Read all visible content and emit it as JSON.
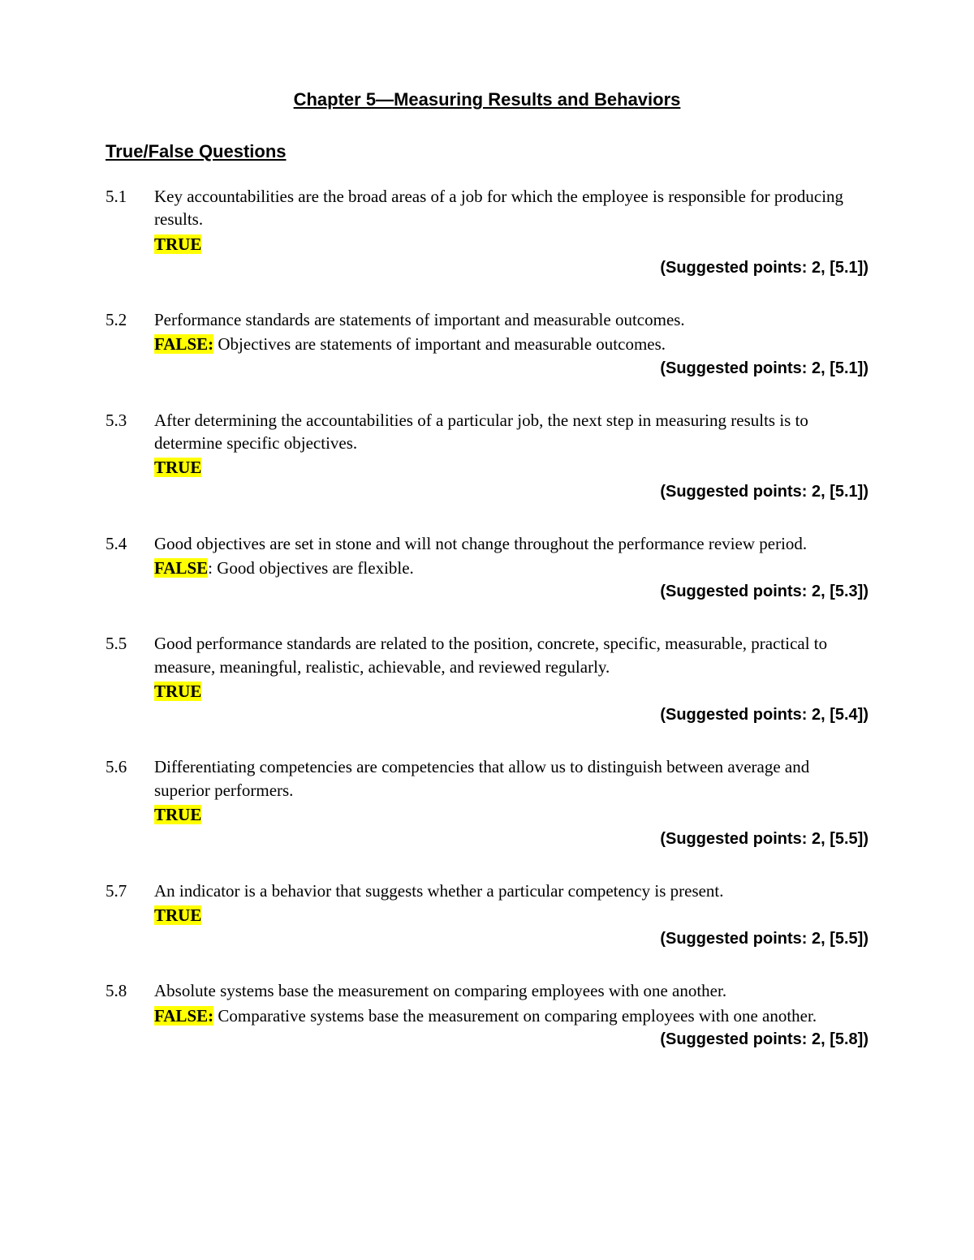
{
  "chapter_title": "Chapter 5—Measuring Results and Behaviors",
  "section_title": "True/False Questions",
  "highlight_color": "#ffff00",
  "text_color": "#000000",
  "background_color": "#ffffff",
  "title_fontsize": 22,
  "body_fontsize": 21,
  "points_fontsize": 20,
  "questions": [
    {
      "number": "5.1",
      "text": "Key accountabilities are the broad areas of a job for which the employee is responsible for producing results.",
      "answer": "TRUE",
      "answer_suffix": "",
      "explanation": "",
      "points": "(Suggested points: 2, [5.1])"
    },
    {
      "number": "5.2",
      "text": "Performance standards are statements of important and measurable outcomes.",
      "answer": "FALSE:",
      "answer_suffix": "",
      "explanation": " Objectives are statements of important and measurable outcomes.",
      "points": "(Suggested points: 2, [5.1])"
    },
    {
      "number": "5.3",
      "text": "After determining the accountabilities of a particular job, the next step in measuring results is to determine specific objectives.",
      "answer": "TRUE",
      "answer_suffix": "",
      "explanation": "",
      "points": "(Suggested points: 2, [5.1])"
    },
    {
      "number": "5.4",
      "text": "Good objectives are set in stone and will not change throughout the performance review period.",
      "answer": "FALSE",
      "answer_suffix": ":",
      "explanation": " Good objectives are flexible.",
      "points": "(Suggested points: 2, [5.3])"
    },
    {
      "number": "5.5",
      "text": "Good performance standards are related to the position, concrete, specific, measurable, practical to measure, meaningful, realistic, achievable, and reviewed regularly.",
      "answer": "TRUE",
      "answer_suffix": "",
      "explanation": "",
      "points": "(Suggested points: 2, [5.4])"
    },
    {
      "number": "5.6",
      "text": "Differentiating competencies are competencies that allow us to distinguish between average and superior performers.",
      "answer": "TRUE",
      "answer_suffix": "",
      "explanation": "",
      "points": "(Suggested points: 2, [5.5])"
    },
    {
      "number": "5.7",
      "text": "An indicator is a behavior that suggests whether a particular competency is present.",
      "answer": "TRUE",
      "answer_suffix": "",
      "explanation": "",
      "points": "(Suggested points: 2, [5.5])"
    },
    {
      "number": "5.8",
      "text": "Absolute systems base the measurement on comparing employees with one another.",
      "answer": "FALSE:",
      "answer_suffix": "",
      "explanation": " Comparative systems base the measurement on comparing employees with one another.",
      "points": "(Suggested points: 2, [5.8])"
    }
  ]
}
